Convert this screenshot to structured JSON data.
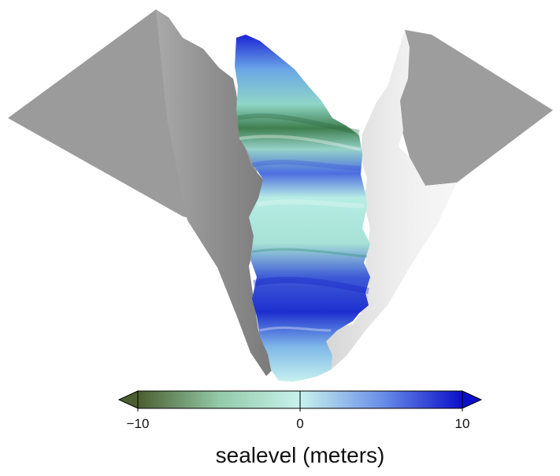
{
  "colorbar": {
    "title": "sealevel (meters)",
    "min": -10,
    "max": 10,
    "ticks": [
      {
        "value": -10,
        "label": "−10"
      },
      {
        "value": 0,
        "label": "0"
      },
      {
        "value": 10,
        "label": "10"
      }
    ],
    "extends": "both",
    "colors": {
      "low": "#4b5e2f",
      "mid_low": "#93c9a8",
      "center": "#c8f2ec",
      "mid_high": "#6b8fe8",
      "high": "#0b10c8"
    }
  },
  "scene": {
    "terrain_color": "#9a9a9a",
    "surface": "3d-perspective-valley"
  }
}
